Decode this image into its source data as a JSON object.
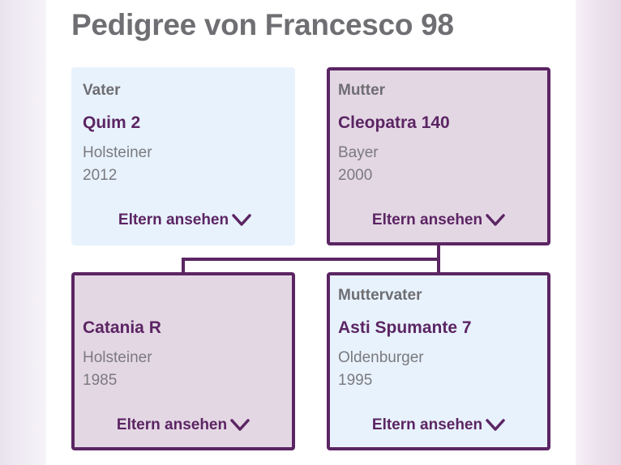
{
  "page": {
    "title": "Pedigree von Francesco 98"
  },
  "colors": {
    "accent": "#5b2563",
    "card_light": "#e8f2fd",
    "card_dark": "#e4d7e4"
  },
  "cards": [
    {
      "role": "Vater",
      "name": "Quim 2",
      "breed": "Holsteiner",
      "year": "2012",
      "action": "Eltern ansehen",
      "icon": "chevron-down-icon"
    },
    {
      "role": "Mutter",
      "name": "Cleopatra 140",
      "breed": "Bayer",
      "year": "2000",
      "action": "Eltern ansehen",
      "icon": "chevron-down-icon"
    },
    {
      "role": "",
      "name": "Catania R",
      "breed": "Holsteiner",
      "year": "1985",
      "action": "Eltern ansehen",
      "icon": "chevron-down-icon"
    },
    {
      "role": "Muttervater",
      "name": "Asti Spumante 7",
      "breed": "Oldenburger",
      "year": "1995",
      "action": "Eltern ansehen",
      "icon": "chevron-down-icon"
    }
  ]
}
